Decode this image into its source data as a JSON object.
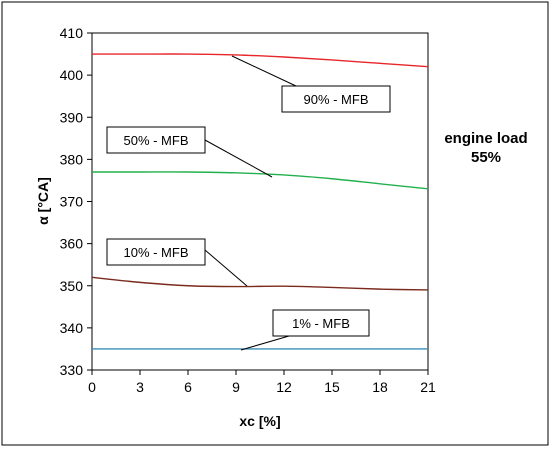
{
  "chart_data": {
    "type": "line",
    "xlabel": "xc [%]",
    "ylabel": "α [°CA]",
    "xlim": [
      0,
      21
    ],
    "ylim": [
      330,
      410
    ],
    "xticks": [
      "0",
      "3",
      "6",
      "9",
      "12",
      "15",
      "18",
      "21"
    ],
    "yticks": [
      "330",
      "340",
      "350",
      "360",
      "370",
      "380",
      "390",
      "400",
      "410"
    ],
    "grid": false,
    "series": [
      {
        "name": "90% - MFB",
        "color": "#e8262a",
        "x": [
          0,
          3,
          6,
          9,
          12,
          15,
          18,
          21
        ],
        "values": [
          405.0,
          405.0,
          405.0,
          404.8,
          404.3,
          403.6,
          402.8,
          402.0
        ]
      },
      {
        "name": "50% - MFB",
        "color": "#22b14c",
        "x": [
          0,
          3,
          6,
          9,
          12,
          15,
          18,
          21
        ],
        "values": [
          377.0,
          377.0,
          377.0,
          376.8,
          376.3,
          375.4,
          374.2,
          373.0
        ]
      },
      {
        "name": "10% - MFB",
        "color": "#7b2a1e",
        "x": [
          0,
          3,
          6,
          9,
          12,
          15,
          18,
          21
        ],
        "values": [
          352.0,
          350.8,
          350.0,
          349.8,
          349.9,
          349.6,
          349.2,
          349.0
        ]
      },
      {
        "name": "1% - MFB",
        "color": "#3a8fb7",
        "x": [
          0,
          3,
          6,
          9,
          12,
          15,
          18,
          21
        ],
        "values": [
          335.0,
          335.0,
          335.0,
          335.0,
          335.0,
          335.0,
          335.0,
          335.0
        ]
      }
    ],
    "side_note": [
      "engine load",
      "55%"
    ]
  }
}
